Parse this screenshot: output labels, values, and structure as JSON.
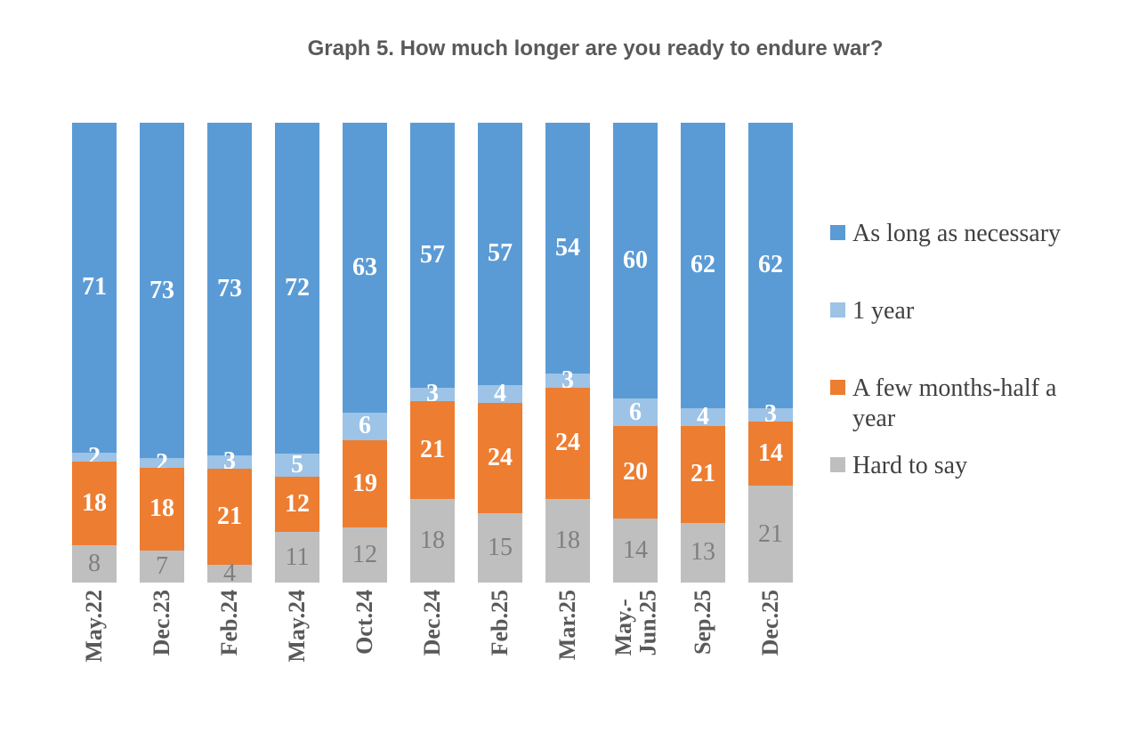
{
  "title": "Graph 5. How much longer are you ready to endure war?",
  "colors": {
    "background": "#ffffff",
    "title_text": "#595959",
    "axis_label_text": "#595959",
    "legend_text": "#404040",
    "series_blue": "#5B9BD5",
    "series_light_blue": "#9DC3E6",
    "series_orange": "#ED7D31",
    "series_gray": "#BFBFBF"
  },
  "chart_data": {
    "type": "bar",
    "variant": "stacked-column-normalized",
    "title": "Graph 5. How much longer are you ready to endure war?",
    "xlabel": "",
    "ylabel": "",
    "ylim": [
      0,
      100
    ],
    "grid": false,
    "data_labels": "shown on each segment",
    "legend_position": "right",
    "categories": [
      "May.22",
      "Dec.23",
      "Feb.24",
      "May.24",
      "Oct.24",
      "Dec.24",
      "Feb.25",
      "Mar.25",
      "May.-\nJun.25",
      "Sep.25",
      "Dec.25"
    ],
    "series": [
      {
        "name": "Hard to say",
        "color": "#BFBFBF",
        "label_color": "#7F7F7F",
        "label_weight": "normal",
        "values": [
          8,
          7,
          4,
          11,
          12,
          18,
          15,
          18,
          14,
          13,
          21
        ]
      },
      {
        "name": "A few months-half a year",
        "color": "#ED7D31",
        "label_color": "#FFFFFF",
        "label_weight": "bold",
        "values": [
          18,
          18,
          21,
          12,
          19,
          21,
          24,
          24,
          20,
          21,
          14
        ]
      },
      {
        "name": "1 year",
        "color": "#9DC3E6",
        "label_color": "#FFFFFF",
        "label_weight": "bold",
        "values": [
          2,
          2,
          3,
          5,
          6,
          3,
          4,
          3,
          6,
          4,
          3
        ]
      },
      {
        "name": "As long as necessary",
        "color": "#5B9BD5",
        "label_color": "#FFFFFF",
        "label_weight": "bold",
        "values": [
          71,
          73,
          73,
          72,
          63,
          57,
          57,
          54,
          60,
          62,
          62
        ]
      }
    ],
    "legend_entries": [
      {
        "label": "As long as necessary",
        "color": "#5B9BD5"
      },
      {
        "label": "1 year",
        "color": "#9DC3E6"
      },
      {
        "label": "A few months-half a year",
        "color": "#ED7D31"
      },
      {
        "label": "Hard to say",
        "color": "#BFBFBF"
      }
    ]
  }
}
